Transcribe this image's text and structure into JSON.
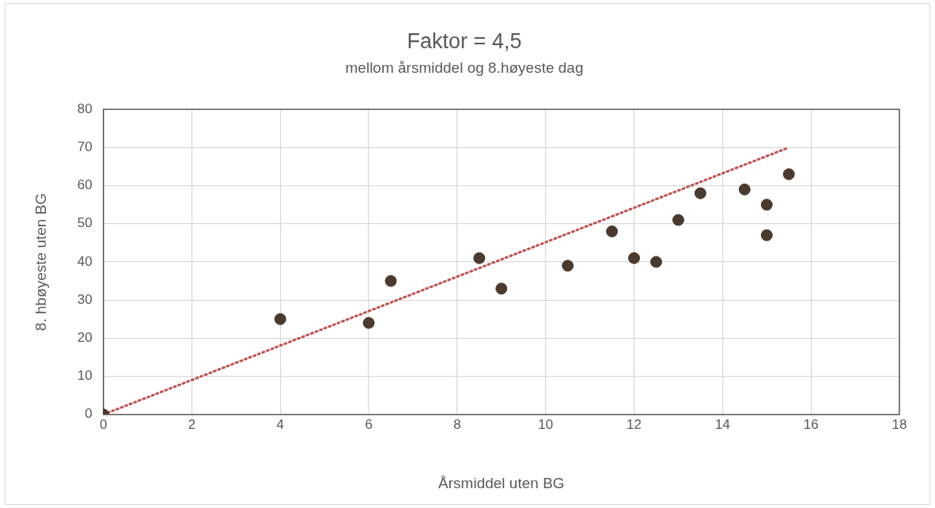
{
  "chart_data": {
    "type": "scatter",
    "title": "Faktor = 4,5",
    "subtitle": "mellom årsmiddel og 8.høyeste dag",
    "xlabel": "Årsmiddel uten BG",
    "ylabel": "8. hbøyeste uten BG",
    "xlim": [
      0,
      18
    ],
    "xticks": [
      0,
      2,
      4,
      6,
      8,
      10,
      12,
      14,
      16,
      18
    ],
    "ylim": [
      0,
      80
    ],
    "yticks": [
      0,
      10,
      20,
      30,
      40,
      50,
      60,
      70,
      80
    ],
    "grid": true,
    "series": [
      {
        "color": "#4a3a2e",
        "marker": "circle",
        "x": [
          0,
          4,
          6,
          6.5,
          8.5,
          9,
          10.5,
          11.5,
          12,
          12.5,
          13,
          13.5,
          14.5,
          15,
          15,
          15.5
        ],
        "values": [
          0,
          25,
          24,
          35,
          41,
          33,
          39,
          48,
          41,
          40,
          51,
          58,
          59,
          55,
          47,
          63
        ]
      },
      {
        "type": "line",
        "color": "#c0504d",
        "line_style": "dotted",
        "marker": "none",
        "x": [
          0,
          15.5
        ],
        "values": [
          0,
          70
        ]
      }
    ]
  }
}
